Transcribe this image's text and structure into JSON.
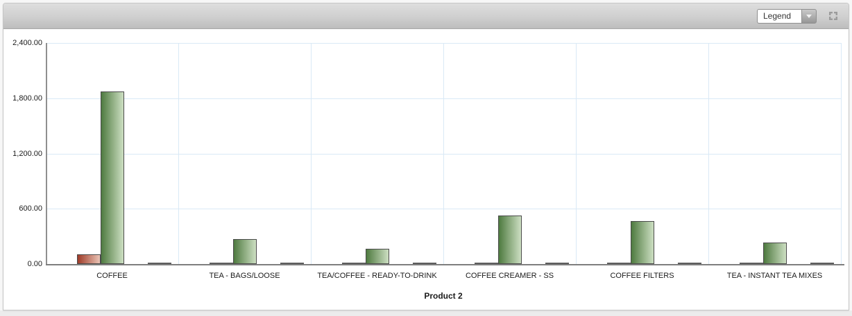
{
  "header": {
    "legend_label": "Legend"
  },
  "chart_data": {
    "type": "bar",
    "title": "",
    "xlabel": "Product 2",
    "ylabel": "",
    "ylim": [
      0,
      2400
    ],
    "ytick_interval": 600,
    "ytick_labels": [
      "0.00",
      "600.00",
      "1,200.00",
      "1,800.00",
      "2,400.00"
    ],
    "grid": true,
    "legend_position": "collapsed-dropdown",
    "categories": [
      "COFFEE",
      "TEA - BAGS/LOOSE",
      "TEA/COFFEE - READY-TO-DRINK",
      "COFFEE CREAMER - SS",
      "COFFEE FILTERS",
      "TEA - INSTANT TEA MIXES"
    ],
    "series": [
      {
        "name": "series-red",
        "color_start": "#9e3b28",
        "color_end": "#eac4b6",
        "values": [
          105,
          2,
          2,
          2,
          2,
          2
        ]
      },
      {
        "name": "series-green",
        "color_start": "#4e7a40",
        "color_end": "#cddfc2",
        "values": [
          1870,
          270,
          165,
          525,
          470,
          235
        ]
      },
      {
        "name": "series-dark-small",
        "color_start": "#5c5c5c",
        "color_end": "#5c5c5c",
        "values": [
          2,
          2,
          2,
          2,
          2,
          2
        ]
      }
    ],
    "colors": {
      "gridline": "#d9e9f6",
      "axis": "#8f8f8f",
      "bar_border": "#4a4a4a"
    }
  }
}
